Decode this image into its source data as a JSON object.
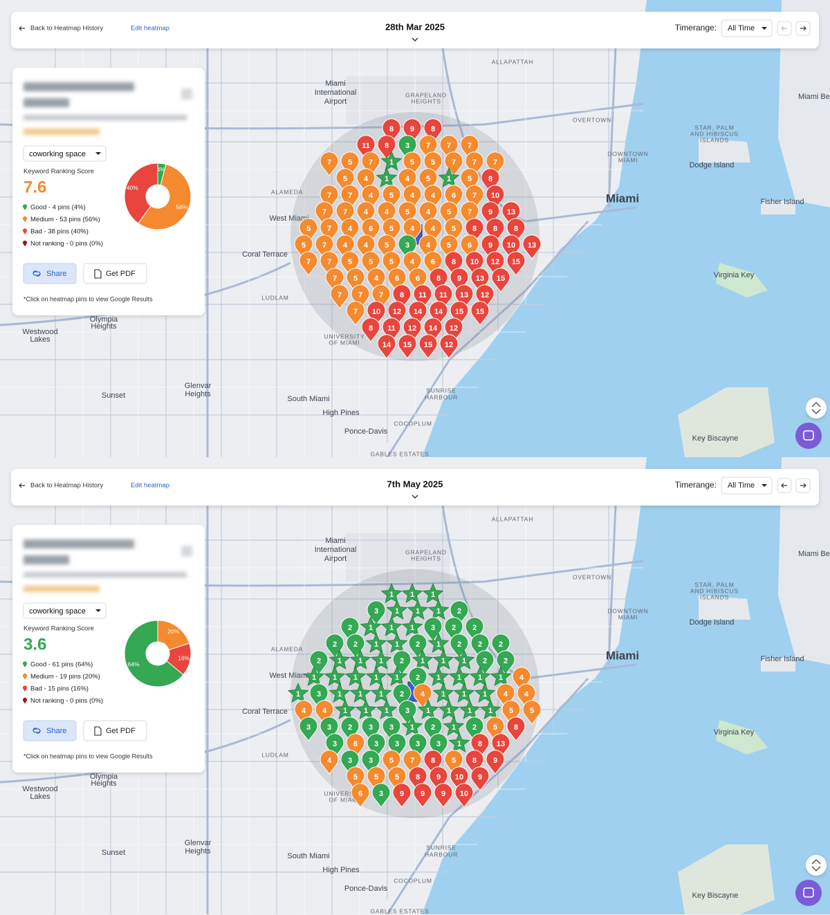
{
  "map_labels": [
    "Miami",
    "International",
    "Airport",
    "GRAPELAND",
    "HEIGHTS",
    "ALLAPATTAH",
    "Miami",
    "OVERTOWN",
    "DOWNTOWN",
    "MIAMI",
    "Coral Terrace",
    "West Miami",
    "Westwood",
    "Lakes",
    "Olympia",
    "Heights",
    "Sunset",
    "Glenvar",
    "Heights",
    "South Miami",
    "High Pines",
    "Ponce-Davis",
    "COCOPLUM",
    "Key Biscayne",
    "Virginia Key",
    "Fisher Island",
    "Dodge Island",
    "SUNRISE",
    "HARBOUR",
    "UNIVERSITY",
    "OF MIAMI",
    "STAR, PALM",
    "AND HIBISCUS",
    "ISLANDS",
    "Miami Bea",
    "ALAMEDA",
    "LUDLAM",
    "GABLES ESTATES"
  ],
  "panels": [
    {
      "header": {
        "back": "Back to Heatmap History",
        "edit": "Edit heatmap",
        "date": "28th Mar 2025",
        "timerange_label": "Timerange:",
        "timerange": "All Time"
      },
      "card": {
        "keyword": "coworking space",
        "score_label": "Keyword Ranking Score",
        "score": "7.6",
        "score_color": "#f58a2e",
        "legend": [
          {
            "label": "Good - 4 pins (4%)",
            "color": "#34a853"
          },
          {
            "label": "Medium - 53 pins (56%)",
            "color": "#f58a2e"
          },
          {
            "label": "Bad - 38 pins (40%)",
            "color": "#e8453c"
          },
          {
            "label": "Not ranking - 0 pins (0%)",
            "color": "#a31515"
          }
        ],
        "share": "Share",
        "pdf": "Get PDF",
        "note": "*Click on heatmap pins to view Google Results"
      },
      "chart_data": {
        "type": "pie",
        "values": [
          4,
          56,
          40
        ],
        "value_labels": [
          "4%",
          "56%",
          "40%"
        ],
        "colors": [
          "#34a853",
          "#f58a2e",
          "#e8453c"
        ]
      },
      "pins": [
        [
          8,
          9,
          8
        ],
        [
          11,
          8,
          3,
          7,
          7,
          7
        ],
        [
          7,
          5,
          7,
          1,
          5,
          5,
          7,
          7,
          7
        ],
        [
          5,
          4,
          1,
          4,
          5,
          1,
          5,
          8
        ],
        [
          7,
          7,
          4,
          5,
          4,
          4,
          6,
          7,
          10
        ],
        [
          7,
          7,
          4,
          4,
          5,
          4,
          5,
          7,
          9,
          13
        ],
        [
          5,
          7,
          4,
          6,
          5,
          4,
          4,
          5,
          8,
          8,
          8
        ],
        [
          5,
          7,
          4,
          4,
          5,
          3,
          4,
          5,
          6,
          9,
          10,
          13
        ],
        [
          7,
          7,
          5,
          5,
          5,
          4,
          6,
          8,
          10,
          12,
          15
        ],
        [
          7,
          5,
          4,
          6,
          6,
          8,
          9,
          13,
          15
        ],
        [
          7,
          7,
          7,
          8,
          11,
          11,
          13,
          12
        ],
        [
          7,
          10,
          12,
          14,
          14,
          15,
          15
        ],
        [
          8,
          11,
          12,
          14,
          12
        ],
        [
          14,
          15,
          15,
          12
        ]
      ]
    },
    {
      "header": {
        "back": "Back to Heatmap History",
        "edit": "Edit heatmap",
        "date": "7th May 2025",
        "timerange_label": "Timerange:",
        "timerange": "All Time"
      },
      "card": {
        "keyword": "coworking space",
        "score_label": "Keyword Ranking Score",
        "score": "3.6",
        "score_color": "#34a853",
        "legend": [
          {
            "label": "Good - 61 pins (64%)",
            "color": "#34a853"
          },
          {
            "label": "Medium - 19 pins (20%)",
            "color": "#f58a2e"
          },
          {
            "label": "Bad - 15 pins (16%)",
            "color": "#e8453c"
          },
          {
            "label": "Not ranking - 0 pins (0%)",
            "color": "#a31515"
          }
        ],
        "share": "Share",
        "pdf": "Get PDF",
        "note": "*Click on heatmap pins to view Google Results"
      },
      "chart_data": {
        "type": "pie",
        "values": [
          20,
          16,
          64
        ],
        "value_labels": [
          "20%",
          "16%",
          "64%"
        ],
        "colors": [
          "#f58a2e",
          "#e8453c",
          "#34a853"
        ]
      },
      "pins": [
        [
          1,
          1,
          1
        ],
        [
          3,
          1,
          1,
          1,
          2
        ],
        [
          2,
          1,
          1,
          1,
          3,
          2,
          2
        ],
        [
          2,
          2,
          1,
          1,
          2,
          1,
          2,
          2,
          2
        ],
        [
          2,
          1,
          1,
          1,
          2,
          1,
          1,
          1,
          2,
          2
        ],
        [
          1,
          1,
          1,
          1,
          1,
          2,
          1,
          1,
          1,
          1,
          4
        ],
        [
          1,
          3,
          1,
          1,
          1,
          2,
          4,
          1,
          1,
          1,
          4,
          4
        ],
        [
          4,
          4,
          1,
          1,
          1,
          3,
          1,
          1,
          1,
          1,
          5,
          5
        ],
        [
          3,
          3,
          2,
          3,
          3,
          1,
          2,
          1,
          2,
          5,
          8
        ],
        [
          3,
          6,
          3,
          3,
          3,
          3,
          1,
          8,
          13
        ],
        [
          4,
          3,
          3,
          5,
          7,
          8,
          5,
          8,
          9
        ],
        [
          5,
          5,
          5,
          8,
          9,
          10,
          9
        ],
        [
          6,
          3,
          9,
          9,
          9,
          10
        ]
      ]
    }
  ]
}
